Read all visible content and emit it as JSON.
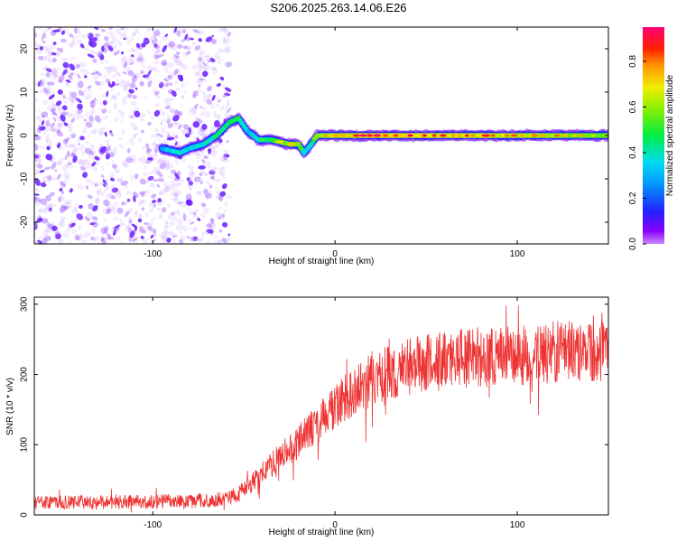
{
  "title": "S206.2025.263.14.06.E26",
  "colors": {
    "snr_line": "#ee3333",
    "scatter_low": "#dcc8ff",
    "scatter_high": "#7722ee"
  },
  "chart_data": [
    {
      "type": "heatmap",
      "title": "S206.2025.263.14.06.E26",
      "xlabel": "Height of straight line (km)",
      "ylabel": "Frequency (Hz)",
      "xlim": [
        -165,
        150
      ],
      "ylim": [
        -25,
        25
      ],
      "xticks": [
        -100,
        0,
        100
      ],
      "xtick_labels": [
        "-100",
        "0",
        "100"
      ],
      "yticks": [
        -20,
        -10,
        0,
        10,
        20
      ],
      "ytick_labels": [
        "-20",
        "-10",
        "0",
        "10",
        "20"
      ],
      "colorbar": {
        "label": "Normalized spectral amplitude",
        "range": [
          0.0,
          0.95
        ],
        "ticks": [
          0.0,
          0.2,
          0.4,
          0.6,
          0.8
        ],
        "tick_labels": [
          "0.0",
          "0.2",
          "0.4",
          "0.6",
          "0.8"
        ],
        "colormap": "rainbow"
      },
      "noise_region_x": [
        -165,
        -60
      ],
      "ridge": {
        "x": [
          -95,
          -85,
          -80,
          -72,
          -65,
          -58,
          -53,
          -48,
          -42,
          -35,
          -25,
          -20,
          -17,
          -13,
          -10,
          -5,
          0,
          20,
          60,
          100,
          150
        ],
        "y": [
          -3,
          -4,
          -3,
          -2,
          0,
          3,
          4,
          1,
          -1,
          -1,
          -2,
          -2,
          -4,
          -2,
          0,
          0,
          0,
          0,
          0,
          0,
          0
        ],
        "amplitude": [
          0.2,
          0.4,
          0.3,
          0.35,
          0.45,
          0.45,
          0.5,
          0.3,
          0.35,
          0.5,
          0.7,
          0.6,
          0.3,
          0.4,
          0.6,
          0.7,
          0.75,
          0.85,
          0.8,
          0.75,
          0.6
        ]
      }
    },
    {
      "type": "line",
      "xlabel": "Height of straight line (km)",
      "ylabel": "SNR (10 * v/v)",
      "xlim": [
        -165,
        150
      ],
      "ylim": [
        0,
        310
      ],
      "xticks": [
        -100,
        0,
        100
      ],
      "xtick_labels": [
        "-100",
        "0",
        "100"
      ],
      "yticks": [
        0,
        100,
        200,
        300
      ],
      "ytick_labels": [
        "0",
        "100",
        "200",
        "300"
      ],
      "envelope": {
        "x": [
          -165,
          -120,
          -80,
          -60,
          -50,
          -40,
          -20,
          0,
          20,
          40,
          60,
          80,
          100,
          120,
          150
        ],
        "y": [
          18,
          18,
          20,
          22,
          35,
          60,
          105,
          155,
          195,
          210,
          220,
          225,
          228,
          232,
          235
        ]
      },
      "noise_amplitude": [
        10,
        45
      ]
    }
  ]
}
